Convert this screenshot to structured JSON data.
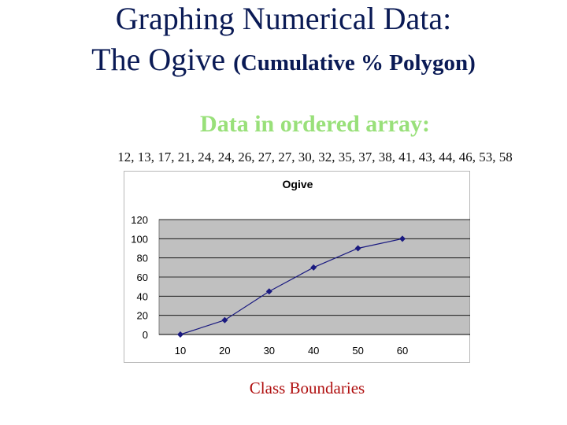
{
  "header": {
    "title_line1": "Graphing Numerical Data:",
    "title_line2_main": "The Ogive ",
    "title_line2_paren": "(Cumulative % Polygon)"
  },
  "subtitle": "Data in ordered array:",
  "data_array_text": "12, 13, 17, 21, 24, 24, 26, 27, 27, 30, 32, 35, 37, 38, 41, 43, 44, 46, 53, 58",
  "colors": {
    "title": "#0a1a55",
    "subtitle": "#99e07a",
    "x_title": "#b01010",
    "plot_bg": "#c0c0c0",
    "series": "#1a1a80"
  },
  "chart_data": {
    "type": "line",
    "title": "Ogive",
    "xlabel": "Class Boundaries",
    "ylabel": "",
    "x": [
      10,
      20,
      30,
      40,
      50,
      60
    ],
    "x_tick_labels": [
      "10",
      "20",
      "30",
      "40",
      "50",
      "60"
    ],
    "y_ticks": [
      0,
      20,
      40,
      60,
      80,
      100,
      120
    ],
    "ylim": [
      0,
      120
    ],
    "grid": "horizontal",
    "legend": "none",
    "series": [
      {
        "values": [
          0,
          15,
          45,
          70,
          90,
          100
        ]
      }
    ]
  }
}
